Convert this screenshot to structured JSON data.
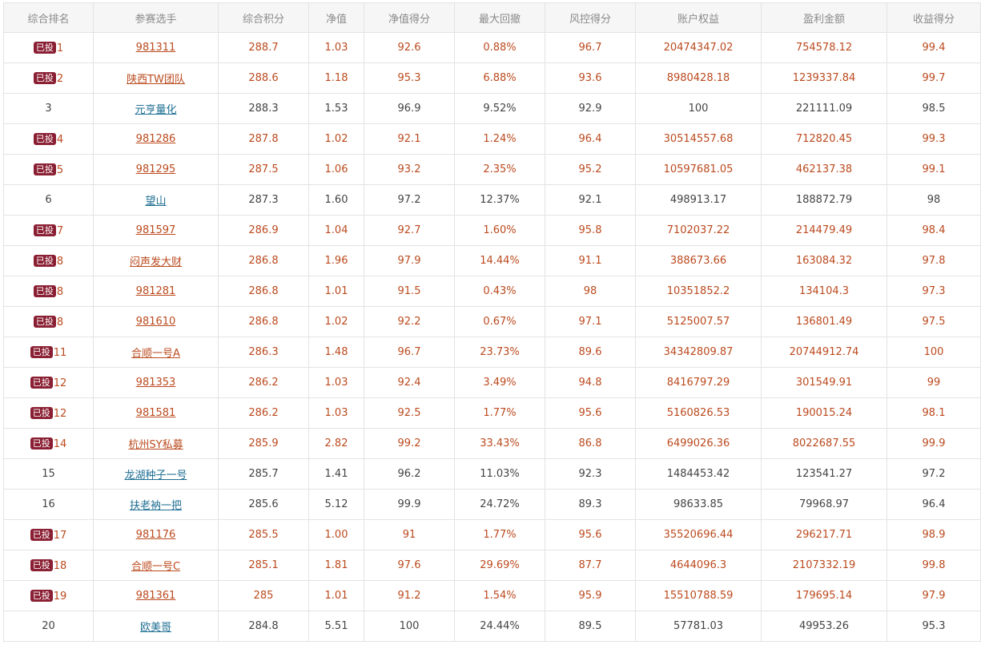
{
  "columns": [
    "综合排名",
    "参赛选手",
    "综合积分",
    "净值",
    "净值得分",
    "最大回撤",
    "风控得分",
    "账户权益",
    "盈利金额",
    "收益得分"
  ],
  "badge_label": "已投",
  "rows": [
    {
      "invested": true,
      "rank": "1",
      "player": "981311",
      "score": "288.7",
      "nav": "1.03",
      "nav_score": "92.6",
      "max_drawdown": "0.88%",
      "risk_score": "96.7",
      "equity": "20474347.02",
      "profit": "754578.12",
      "return_score": "99.4"
    },
    {
      "invested": true,
      "rank": "2",
      "player": "陕西TW团队",
      "score": "288.6",
      "nav": "1.18",
      "nav_score": "95.3",
      "max_drawdown": "6.88%",
      "risk_score": "93.6",
      "equity": "8980428.18",
      "profit": "1239337.84",
      "return_score": "99.7"
    },
    {
      "invested": false,
      "rank": "3",
      "player": "元亨量化",
      "score": "288.3",
      "nav": "1.53",
      "nav_score": "96.9",
      "max_drawdown": "9.52%",
      "risk_score": "92.9",
      "equity": "100",
      "profit": "221111.09",
      "return_score": "98.5"
    },
    {
      "invested": true,
      "rank": "4",
      "player": "981286",
      "score": "287.8",
      "nav": "1.02",
      "nav_score": "92.1",
      "max_drawdown": "1.24%",
      "risk_score": "96.4",
      "equity": "30514557.68",
      "profit": "712820.45",
      "return_score": "99.3"
    },
    {
      "invested": true,
      "rank": "5",
      "player": "981295",
      "score": "287.5",
      "nav": "1.06",
      "nav_score": "93.2",
      "max_drawdown": "2.35%",
      "risk_score": "95.2",
      "equity": "10597681.05",
      "profit": "462137.38",
      "return_score": "99.1"
    },
    {
      "invested": false,
      "rank": "6",
      "player": "望山",
      "score": "287.3",
      "nav": "1.60",
      "nav_score": "97.2",
      "max_drawdown": "12.37%",
      "risk_score": "92.1",
      "equity": "498913.17",
      "profit": "188872.79",
      "return_score": "98"
    },
    {
      "invested": true,
      "rank": "7",
      "player": "981597",
      "score": "286.9",
      "nav": "1.04",
      "nav_score": "92.7",
      "max_drawdown": "1.60%",
      "risk_score": "95.8",
      "equity": "7102037.22",
      "profit": "214479.49",
      "return_score": "98.4"
    },
    {
      "invested": true,
      "rank": "8",
      "player": "闷声发大财",
      "score": "286.8",
      "nav": "1.96",
      "nav_score": "97.9",
      "max_drawdown": "14.44%",
      "risk_score": "91.1",
      "equity": "388673.66",
      "profit": "163084.32",
      "return_score": "97.8"
    },
    {
      "invested": true,
      "rank": "8",
      "player": "981281",
      "score": "286.8",
      "nav": "1.01",
      "nav_score": "91.5",
      "max_drawdown": "0.43%",
      "risk_score": "98",
      "equity": "10351852.2",
      "profit": "134104.3",
      "return_score": "97.3"
    },
    {
      "invested": true,
      "rank": "8",
      "player": "981610",
      "score": "286.8",
      "nav": "1.02",
      "nav_score": "92.2",
      "max_drawdown": "0.67%",
      "risk_score": "97.1",
      "equity": "5125007.57",
      "profit": "136801.49",
      "return_score": "97.5"
    },
    {
      "invested": true,
      "rank": "11",
      "player": "合顺一号A",
      "score": "286.3",
      "nav": "1.48",
      "nav_score": "96.7",
      "max_drawdown": "23.73%",
      "risk_score": "89.6",
      "equity": "34342809.87",
      "profit": "20744912.74",
      "return_score": "100"
    },
    {
      "invested": true,
      "rank": "12",
      "player": "981353",
      "score": "286.2",
      "nav": "1.03",
      "nav_score": "92.4",
      "max_drawdown": "3.49%",
      "risk_score": "94.8",
      "equity": "8416797.29",
      "profit": "301549.91",
      "return_score": "99"
    },
    {
      "invested": true,
      "rank": "12",
      "player": "981581",
      "score": "286.2",
      "nav": "1.03",
      "nav_score": "92.5",
      "max_drawdown": "1.77%",
      "risk_score": "95.6",
      "equity": "5160826.53",
      "profit": "190015.24",
      "return_score": "98.1"
    },
    {
      "invested": true,
      "rank": "14",
      "player": "杭州SY私募",
      "score": "285.9",
      "nav": "2.82",
      "nav_score": "99.2",
      "max_drawdown": "33.43%",
      "risk_score": "86.8",
      "equity": "6499026.36",
      "profit": "8022687.55",
      "return_score": "99.9"
    },
    {
      "invested": false,
      "rank": "15",
      "player": "龙湖种子一号",
      "score": "285.7",
      "nav": "1.41",
      "nav_score": "96.2",
      "max_drawdown": "11.03%",
      "risk_score": "92.3",
      "equity": "1484453.42",
      "profit": "123541.27",
      "return_score": "97.2"
    },
    {
      "invested": false,
      "rank": "16",
      "player": "扶老衲一把",
      "score": "285.6",
      "nav": "5.12",
      "nav_score": "99.9",
      "max_drawdown": "24.72%",
      "risk_score": "89.3",
      "equity": "98633.85",
      "profit": "79968.97",
      "return_score": "96.4"
    },
    {
      "invested": true,
      "rank": "17",
      "player": "981176",
      "score": "285.5",
      "nav": "1.00",
      "nav_score": "91",
      "max_drawdown": "1.77%",
      "risk_score": "95.6",
      "equity": "35520696.44",
      "profit": "296217.71",
      "return_score": "98.9"
    },
    {
      "invested": true,
      "rank": "18",
      "player": "合顺一号C",
      "score": "285.1",
      "nav": "1.81",
      "nav_score": "97.6",
      "max_drawdown": "29.69%",
      "risk_score": "87.7",
      "equity": "4644096.3",
      "profit": "2107332.19",
      "return_score": "99.8"
    },
    {
      "invested": true,
      "rank": "19",
      "player": "981361",
      "score": "285",
      "nav": "1.01",
      "nav_score": "91.2",
      "max_drawdown": "1.54%",
      "risk_score": "95.9",
      "equity": "15510788.59",
      "profit": "179695.14",
      "return_score": "97.9"
    },
    {
      "invested": false,
      "rank": "20",
      "player": "欧美哥",
      "score": "284.8",
      "nav": "5.51",
      "nav_score": "100",
      "max_drawdown": "24.44%",
      "risk_score": "89.5",
      "equity": "57781.03",
      "profit": "49953.26",
      "return_score": "95.3"
    }
  ]
}
